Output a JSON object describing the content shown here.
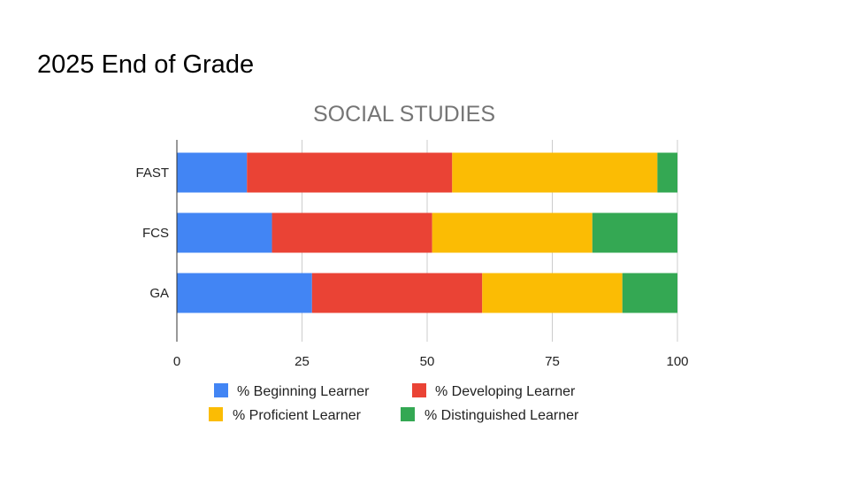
{
  "slide": {
    "title": "2025 End of Grade"
  },
  "chart_data": {
    "type": "bar",
    "orientation": "horizontal",
    "stacked": true,
    "title": "SOCIAL STUDIES",
    "categories": [
      "FAST",
      "FCS",
      "GA"
    ],
    "series": [
      {
        "name": "% Beginning Learner",
        "color": "#4285f4",
        "values": [
          14,
          19,
          27
        ]
      },
      {
        "name": "% Developing Learner",
        "color": "#ea4335",
        "values": [
          41,
          32,
          34
        ]
      },
      {
        "name": "% Proficient Learner",
        "color": "#fbbc04",
        "values": [
          41,
          32,
          28
        ]
      },
      {
        "name": "% Distinguished Learner",
        "color": "#34a853",
        "values": [
          4,
          17,
          11
        ]
      }
    ],
    "xlim": [
      0,
      100
    ],
    "xticks": [
      0,
      25,
      50,
      75,
      100
    ],
    "grid": true,
    "legend_position": "bottom"
  }
}
